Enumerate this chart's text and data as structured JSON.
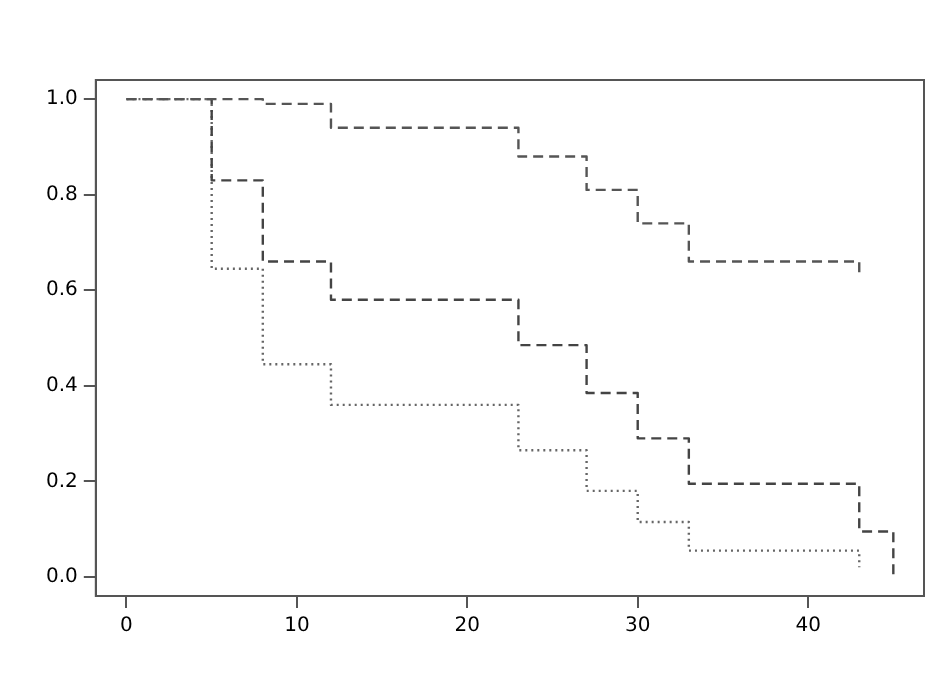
{
  "chart_data": {
    "type": "step",
    "xlim": [
      -1.8,
      46.8
    ],
    "ylim": [
      -0.04,
      1.04
    ],
    "xticks": [
      0,
      10,
      20,
      30,
      40
    ],
    "yticks": [
      {
        "value": 0,
        "label": "0.0"
      },
      {
        "value": 0.2,
        "label": "0.2"
      },
      {
        "value": 0.4,
        "label": "0.4"
      },
      {
        "value": 0.6,
        "label": "0.6"
      },
      {
        "value": 0.8,
        "label": "0.8"
      },
      {
        "value": 1,
        "label": "1.0"
      }
    ],
    "grid": false,
    "legend": false,
    "marker": "none",
    "series": [
      {
        "color": "#555555",
        "line_style": "dashed",
        "x": [
          0,
          8,
          12,
          23,
          27,
          30,
          33,
          43
        ],
        "values": [
          1,
          0.99,
          0.94,
          0.88,
          0.81,
          0.74,
          0.66,
          0.63
        ]
      },
      {
        "color": "#444444",
        "line_style": "dashed",
        "x": [
          0,
          5,
          8,
          12,
          23,
          27,
          30,
          33,
          43,
          45
        ],
        "values": [
          1,
          0.83,
          0.66,
          0.58,
          0.485,
          0.385,
          0.29,
          0.195,
          0.095,
          0
        ]
      },
      {
        "color": "#666666",
        "line_style": "dotted",
        "x": [
          0,
          5,
          8,
          12,
          23,
          27,
          30,
          33,
          43
        ],
        "values": [
          1,
          0.645,
          0.445,
          0.36,
          0.265,
          0.18,
          0.115,
          0.055,
          0.02
        ]
      }
    ]
  }
}
